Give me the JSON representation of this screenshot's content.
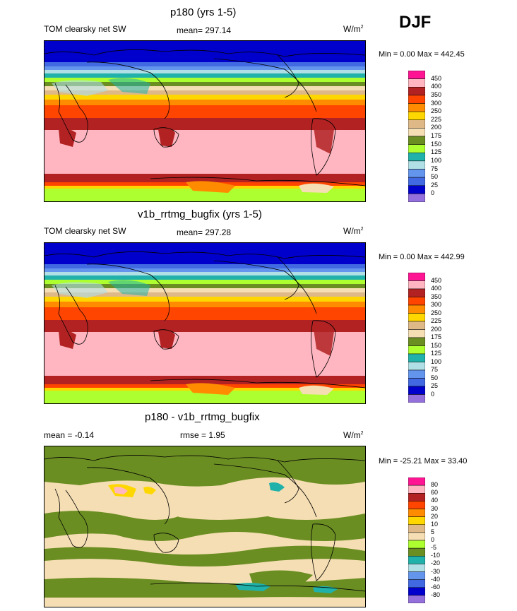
{
  "season": "DJF",
  "chart_data": [
    {
      "type": "heatmap",
      "title": "p180 (yrs 1-5)",
      "variable": "TOM clearsky net SW",
      "stat_text": "mean= 297.14",
      "units": {
        "base": "W/m",
        "sup": "2"
      },
      "minmax_text": "Min =   0.00 Max = 442.45",
      "mean": 297.14,
      "min": 0.0,
      "max": 442.45,
      "colorbar": {
        "levels": [
          "450",
          "400",
          "350",
          "300",
          "250",
          "225",
          "200",
          "175",
          "150",
          "125",
          "100",
          "75",
          "50",
          "25",
          "0"
        ],
        "colors": [
          "#ff1493",
          "#ffb6c1",
          "#b22222",
          "#ff4500",
          "#ff8c00",
          "#ffd700",
          "#deb887",
          "#f5deb3",
          "#6b8e23",
          "#adff2f",
          "#20b2aa",
          "#b0e0e6",
          "#6495ed",
          "#4169e1",
          "#0000cd",
          "#9370db"
        ]
      }
    },
    {
      "type": "heatmap",
      "title": "v1b_rrtmg_bugfix (yrs 1-5)",
      "variable": "TOM clearsky net SW",
      "stat_text": "mean= 297.28",
      "units": {
        "base": "W/m",
        "sup": "2"
      },
      "minmax_text": "Min =   0.00 Max = 442.99",
      "mean": 297.28,
      "min": 0.0,
      "max": 442.99,
      "colorbar": {
        "levels": [
          "450",
          "400",
          "350",
          "300",
          "250",
          "225",
          "200",
          "175",
          "150",
          "125",
          "100",
          "75",
          "50",
          "25",
          "0"
        ],
        "colors": [
          "#ff1493",
          "#ffb6c1",
          "#b22222",
          "#ff4500",
          "#ff8c00",
          "#ffd700",
          "#deb887",
          "#f5deb3",
          "#6b8e23",
          "#adff2f",
          "#20b2aa",
          "#b0e0e6",
          "#6495ed",
          "#4169e1",
          "#0000cd",
          "#9370db"
        ]
      }
    },
    {
      "type": "heatmap",
      "title": "p180 - v1b_rrtmg_bugfix",
      "stat_text": "mean =  -0.14",
      "stat2_text": "rmse =   1.95",
      "units_text": "W/m",
      "units_sup": "2",
      "minmax_text": "Min = -25.21 Max =  33.40",
      "mean": -0.14,
      "rmse": 1.95,
      "min": -25.21,
      "max": 33.4,
      "colorbar": {
        "levels": [
          "80",
          "60",
          "40",
          "30",
          "20",
          "10",
          "5",
          "0",
          "-5",
          "-10",
          "-20",
          "-30",
          "-40",
          "-60",
          "-80"
        ],
        "colors": [
          "#ff1493",
          "#ffb6c1",
          "#b22222",
          "#ff4500",
          "#ff8c00",
          "#ffd700",
          "#deb887",
          "#f5deb3",
          "#adff2f",
          "#6b8e23",
          "#20b2aa",
          "#b0e0e6",
          "#6495ed",
          "#4169e1",
          "#0000cd",
          "#9370db"
        ]
      }
    }
  ]
}
